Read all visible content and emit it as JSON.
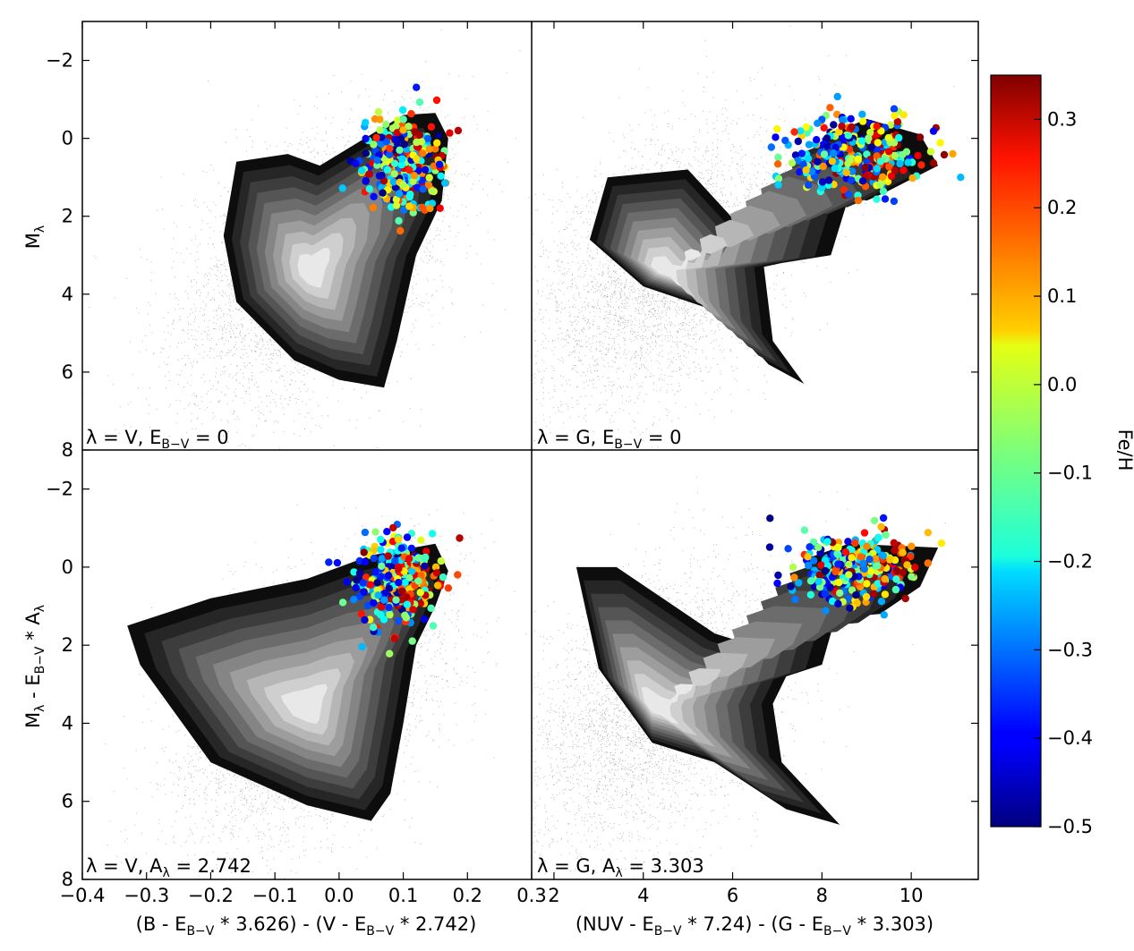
{
  "chart_data": [
    {
      "type": "scatter",
      "panel": "top-left",
      "label": "λ = V, E_{B−V} = 0",
      "xlim": [
        -0.4,
        0.3
      ],
      "ylim": [
        8,
        -3
      ],
      "ylabel": "M_λ",
      "x_ticks": [],
      "y_ticks": [
        "−2",
        "0",
        "2",
        "4",
        "6",
        "8"
      ],
      "background": "grey density contours of a large star sample (main sequence + red clump)",
      "points_summary": "~300 clump stars colored by Fe/H, clustered near x≈0.05–0.15, y≈-1.2–2"
    },
    {
      "type": "scatter",
      "panel": "top-right",
      "label": "λ = G, E_{B−V} = 0",
      "xlim": [
        1.5,
        11.5
      ],
      "ylim": [
        8,
        -3
      ],
      "x_ticks": [],
      "y_ticks": [],
      "points_summary": "clump stars colored by Fe/H near x≈7–11, y≈-1.5–2.5"
    },
    {
      "type": "scatter",
      "panel": "bottom-left",
      "label": "λ = V, A_λ = 2.742",
      "xlim": [
        -0.4,
        0.3
      ],
      "ylim": [
        8,
        -3
      ],
      "xlabel": "(B - E_{B−V} * 3.626) - (V - E_{B−V} * 2.742)",
      "ylabel": "M_λ - E_{B−V} * A_λ",
      "x_ticks": [
        "−0.4",
        "−0.3",
        "−0.2",
        "−0.1",
        "0.0",
        "0.1",
        "0.2",
        "0.3"
      ],
      "y_ticks": [
        "−2",
        "0",
        "2",
        "4",
        "6",
        "8"
      ]
    },
    {
      "type": "scatter",
      "panel": "bottom-right",
      "label": "λ = G, A_λ = 3.303",
      "xlim": [
        1.5,
        11.5
      ],
      "ylim": [
        8,
        -3
      ],
      "xlabel": "(NUV - E_{B−V} * 7.24) - (G - E_{B−V} * 3.303)",
      "x_ticks": [
        "2",
        "4",
        "6",
        "8",
        "10"
      ],
      "y_ticks": []
    }
  ],
  "colorbar": {
    "label": "Fe/H",
    "min": -0.5,
    "max": 0.35,
    "ticks": [
      "0.3",
      "0.2",
      "0.1",
      "0.0",
      "−0.1",
      "−0.2",
      "−0.3",
      "−0.4",
      "−0.5"
    ],
    "colormap": "jet"
  },
  "colors": {
    "contour_levels": [
      "#0d0d0d",
      "#262626",
      "#3d3d3d",
      "#555555",
      "#6c6c6c",
      "#858585",
      "#9d9d9d",
      "#b6b6b6",
      "#cfcfcf",
      "#e8e8e8"
    ]
  }
}
